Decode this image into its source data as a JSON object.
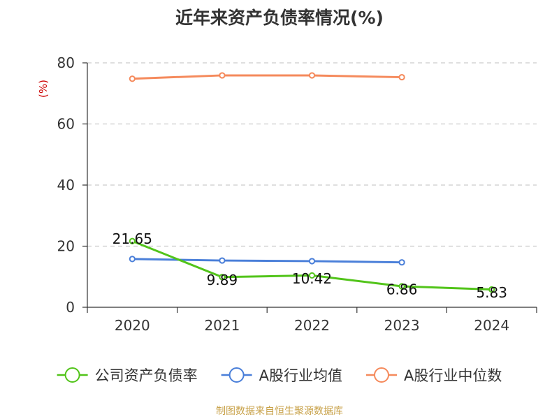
{
  "header": {
    "title": "近年来资产负债率情况(%)"
  },
  "footer": {
    "source": "制图数据来自恒生聚源数据库"
  },
  "chart_data": {
    "type": "line",
    "title": "近年来资产负债率情况(%)",
    "ylabel": "(%)",
    "xlabel": "",
    "categories": [
      "2020",
      "2021",
      "2022",
      "2023",
      "2024"
    ],
    "ylim": [
      0,
      80
    ],
    "yticks": [
      0,
      20,
      40,
      60,
      80
    ],
    "grid": true,
    "legend_position": "bottom",
    "series": [
      {
        "name": "公司资产负债率",
        "color": "#52c41a",
        "values": [
          21.65,
          9.89,
          10.42,
          6.86,
          5.83
        ],
        "labels": [
          "21.65",
          "9.89",
          "10.42",
          "6.86",
          "5.83"
        ]
      },
      {
        "name": "A股行业均值",
        "color": "#4a7fd9",
        "values": [
          15.8,
          15.3,
          15.1,
          14.7,
          null
        ]
      },
      {
        "name": "A股行业中位数",
        "color": "#f58a5c",
        "values": [
          74.8,
          75.9,
          75.9,
          75.3,
          null
        ]
      }
    ],
    "tick_color": "#333333",
    "grid_color": "#cccccc",
    "unit_color": "#cc0000"
  }
}
